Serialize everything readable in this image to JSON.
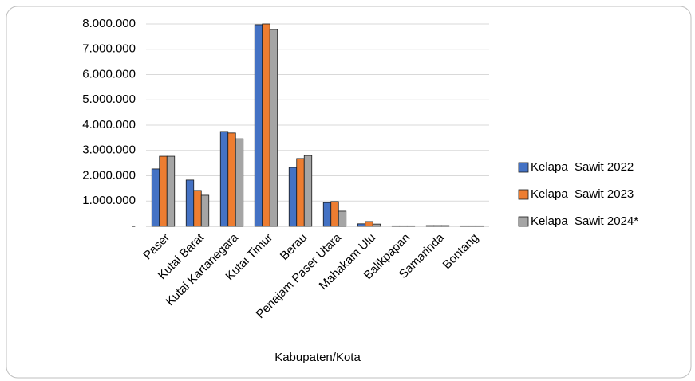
{
  "chart_data": {
    "type": "bar",
    "x_label": "Kabupaten/Kota",
    "categories": [
      "Paser",
      "Kutai Barat",
      "Kutai Kartanegara",
      "Kutai Timur",
      "Berau",
      "Penajam Paser Utara",
      "Mahakam Ulu",
      "Balikpapan",
      "Samarinda",
      "Bontang"
    ],
    "series": [
      {
        "name": "Kelapa  Sawit 2022",
        "color": "#4472c4",
        "values": [
          2270000,
          1830000,
          3750000,
          7970000,
          2330000,
          940000,
          100000,
          20000,
          30000,
          20000
        ]
      },
      {
        "name": "Kelapa  Sawit 2023",
        "color": "#ed7d31",
        "values": [
          2770000,
          1420000,
          3690000,
          8000000,
          2680000,
          980000,
          190000,
          20000,
          30000,
          20000
        ]
      },
      {
        "name": "Kelapa  Sawit 2024*",
        "color": "#a5a5a5",
        "values": [
          2770000,
          1230000,
          3460000,
          7780000,
          2800000,
          600000,
          90000,
          20000,
          30000,
          20000
        ]
      }
    ],
    "ylim": [
      0,
      8000000
    ],
    "yticks": [
      {
        "value": 0,
        "label": "-"
      },
      {
        "value": 1000000,
        "label": "1.000.000"
      },
      {
        "value": 2000000,
        "label": "2.000.000"
      },
      {
        "value": 3000000,
        "label": "3.000.000"
      },
      {
        "value": 4000000,
        "label": "4.000.000"
      },
      {
        "value": 5000000,
        "label": "5.000.000"
      },
      {
        "value": 6000000,
        "label": "6.000.000"
      },
      {
        "value": 7000000,
        "label": "7.000.000"
      },
      {
        "value": 8000000,
        "label": "8.000.000"
      }
    ],
    "grid": true,
    "legend": "right"
  }
}
